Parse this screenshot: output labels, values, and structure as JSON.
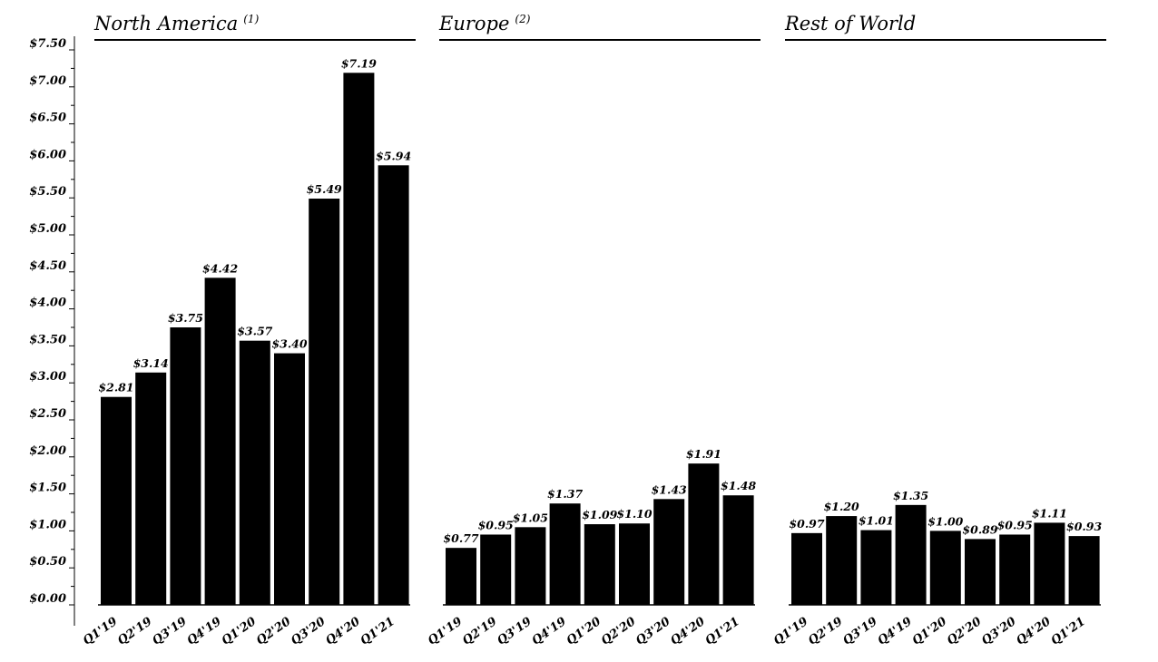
{
  "chart_data": {
    "type": "bar",
    "ylim": [
      0,
      7.5
    ],
    "y_ticks": [
      "$0.00",
      "$0.50",
      "$1.00",
      "$1.50",
      "$2.00",
      "$2.50",
      "$3.00",
      "$3.50",
      "$4.00",
      "$4.50",
      "$5.00",
      "$5.50",
      "$6.00",
      "$6.50",
      "$7.00",
      "$7.50"
    ],
    "categories": [
      "Q1'19",
      "Q2'19",
      "Q3'19",
      "Q4'19",
      "Q1'20",
      "Q2'20",
      "Q3'20",
      "Q4'20",
      "Q1'21"
    ],
    "colors": {
      "bar": "#000000",
      "axis": "#000000",
      "background": "#ffffff"
    },
    "grid": false,
    "panels": [
      {
        "title": "North America",
        "footnote": "(1)",
        "values": [
          2.81,
          3.14,
          3.75,
          4.42,
          3.57,
          3.4,
          5.49,
          7.19,
          5.94
        ],
        "labels": [
          "$2.81",
          "$3.14",
          "$3.75",
          "$4.42",
          "$3.57",
          "$3.40",
          "$5.49",
          "$7.19",
          "$5.94"
        ]
      },
      {
        "title": "Europe",
        "footnote": "(2)",
        "values": [
          0.77,
          0.95,
          1.05,
          1.37,
          1.09,
          1.1,
          1.43,
          1.91,
          1.48
        ],
        "labels": [
          "$0.77",
          "$0.95",
          "$1.05",
          "$1.37",
          "$1.09",
          "$1.10",
          "$1.43",
          "$1.91",
          "$1.48"
        ]
      },
      {
        "title": "Rest of World",
        "footnote": "",
        "values": [
          0.97,
          1.2,
          1.01,
          1.35,
          1.0,
          0.89,
          0.95,
          1.11,
          0.93
        ],
        "labels": [
          "$0.97",
          "$1.20",
          "$1.01",
          "$1.35",
          "$1.00",
          "$0.89",
          "$0.95",
          "$1.11",
          "$0.93"
        ]
      }
    ]
  }
}
